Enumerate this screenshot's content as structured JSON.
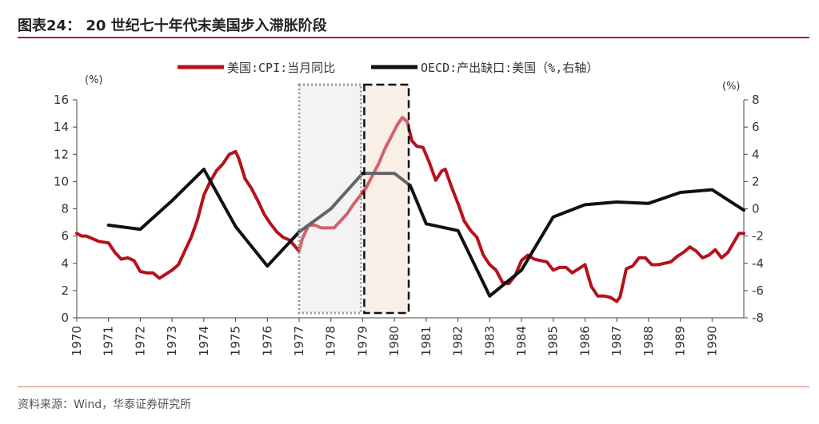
{
  "header": {
    "title": "图表24：   20 世纪七十年代末美国步入滞胀阶段"
  },
  "footer": {
    "source": "资料来源：Wind，华泰证券研究所"
  },
  "chart_data": {
    "type": "line",
    "title": "",
    "xlabel": "",
    "ylabel": "",
    "left_unit": "(%)",
    "right_unit": "(%)",
    "legend_position": "top-center",
    "grid": false,
    "colors": {
      "cpi": "#b5121b",
      "gap": "#111111",
      "shade_gray": "#ededed",
      "shade_orange": "#f6e6da",
      "box_gray": "#9a9a9a",
      "box_black": "#111111"
    },
    "x_ticks": [
      "1970",
      "1971",
      "1972",
      "1973",
      "1974",
      "1975",
      "1976",
      "1977",
      "1978",
      "1979",
      "1980",
      "1981",
      "1982",
      "1983",
      "1984",
      "1985",
      "1986",
      "1987",
      "1988",
      "1989",
      "1990"
    ],
    "xlim": [
      1970,
      1991
    ],
    "left_axis": {
      "ylim": [
        0,
        16
      ],
      "ticks": [
        "0",
        "2",
        "4",
        "6",
        "8",
        "10",
        "12",
        "14",
        "16"
      ]
    },
    "right_axis": {
      "ylim": [
        -8,
        8
      ],
      "ticks": [
        "-8",
        "-6",
        "-4",
        "-2",
        "0",
        "2",
        "4",
        "6",
        "8"
      ]
    },
    "shaded_periods": [
      {
        "start": 1977.0,
        "end": 1978.95,
        "style": "gray-dotted"
      },
      {
        "start": 1979.05,
        "end": 1980.45,
        "style": "orange-dashed"
      }
    ],
    "series": [
      {
        "name": "美国:CPI:当月同比",
        "axis": "left",
        "points": [
          [
            1970.0,
            6.2
          ],
          [
            1970.15,
            6.0
          ],
          [
            1970.3,
            6.0
          ],
          [
            1970.5,
            5.8
          ],
          [
            1970.7,
            5.6
          ],
          [
            1971.0,
            5.5
          ],
          [
            1971.2,
            4.8
          ],
          [
            1971.4,
            4.3
          ],
          [
            1971.6,
            4.4
          ],
          [
            1971.8,
            4.2
          ],
          [
            1972.0,
            3.4
          ],
          [
            1972.2,
            3.3
          ],
          [
            1972.4,
            3.3
          ],
          [
            1972.6,
            2.9
          ],
          [
            1972.8,
            3.2
          ],
          [
            1973.0,
            3.5
          ],
          [
            1973.2,
            3.9
          ],
          [
            1973.4,
            4.9
          ],
          [
            1973.6,
            5.9
          ],
          [
            1973.8,
            7.2
          ],
          [
            1974.0,
            9.0
          ],
          [
            1974.2,
            10.0
          ],
          [
            1974.4,
            10.8
          ],
          [
            1974.6,
            11.3
          ],
          [
            1974.8,
            12.0
          ],
          [
            1975.0,
            12.2
          ],
          [
            1975.1,
            11.7
          ],
          [
            1975.3,
            10.2
          ],
          [
            1975.5,
            9.5
          ],
          [
            1975.7,
            8.6
          ],
          [
            1975.9,
            7.6
          ],
          [
            1976.1,
            6.9
          ],
          [
            1976.3,
            6.3
          ],
          [
            1976.5,
            5.9
          ],
          [
            1976.7,
            5.7
          ],
          [
            1976.85,
            5.3
          ],
          [
            1977.0,
            4.9
          ],
          [
            1977.1,
            5.8
          ],
          [
            1977.3,
            6.8
          ],
          [
            1977.5,
            6.8
          ],
          [
            1977.7,
            6.6
          ],
          [
            1977.9,
            6.6
          ],
          [
            1978.1,
            6.6
          ],
          [
            1978.3,
            7.1
          ],
          [
            1978.5,
            7.6
          ],
          [
            1978.7,
            8.3
          ],
          [
            1978.9,
            8.9
          ],
          [
            1979.1,
            9.5
          ],
          [
            1979.3,
            10.4
          ],
          [
            1979.5,
            11.3
          ],
          [
            1979.7,
            12.4
          ],
          [
            1979.9,
            13.3
          ],
          [
            1980.1,
            14.2
          ],
          [
            1980.25,
            14.7
          ],
          [
            1980.4,
            14.4
          ],
          [
            1980.55,
            13.0
          ],
          [
            1980.7,
            12.6
          ],
          [
            1980.9,
            12.5
          ],
          [
            1981.1,
            11.4
          ],
          [
            1981.3,
            10.1
          ],
          [
            1981.5,
            10.8
          ],
          [
            1981.6,
            10.9
          ],
          [
            1981.8,
            9.6
          ],
          [
            1982.0,
            8.4
          ],
          [
            1982.2,
            7.1
          ],
          [
            1982.4,
            6.4
          ],
          [
            1982.6,
            5.9
          ],
          [
            1982.8,
            4.6
          ],
          [
            1983.0,
            3.9
          ],
          [
            1983.2,
            3.5
          ],
          [
            1983.4,
            2.6
          ],
          [
            1983.6,
            2.5
          ],
          [
            1983.8,
            3.1
          ],
          [
            1984.0,
            4.2
          ],
          [
            1984.2,
            4.6
          ],
          [
            1984.4,
            4.3
          ],
          [
            1984.6,
            4.2
          ],
          [
            1984.8,
            4.1
          ],
          [
            1985.0,
            3.5
          ],
          [
            1985.2,
            3.7
          ],
          [
            1985.4,
            3.7
          ],
          [
            1985.6,
            3.3
          ],
          [
            1985.8,
            3.6
          ],
          [
            1986.0,
            3.9
          ],
          [
            1986.2,
            2.3
          ],
          [
            1986.4,
            1.6
          ],
          [
            1986.6,
            1.6
          ],
          [
            1986.8,
            1.5
          ],
          [
            1987.0,
            1.2
          ],
          [
            1987.1,
            1.5
          ],
          [
            1987.3,
            3.6
          ],
          [
            1987.5,
            3.8
          ],
          [
            1987.7,
            4.4
          ],
          [
            1987.9,
            4.4
          ],
          [
            1988.1,
            3.9
          ],
          [
            1988.3,
            3.9
          ],
          [
            1988.5,
            4.0
          ],
          [
            1988.7,
            4.1
          ],
          [
            1988.9,
            4.5
          ],
          [
            1989.1,
            4.8
          ],
          [
            1989.3,
            5.2
          ],
          [
            1989.5,
            4.9
          ],
          [
            1989.7,
            4.4
          ],
          [
            1989.9,
            4.6
          ],
          [
            1990.1,
            5.0
          ],
          [
            1990.3,
            4.4
          ],
          [
            1990.5,
            4.8
          ],
          [
            1990.7,
            5.6
          ],
          [
            1990.85,
            6.2
          ],
          [
            1991.0,
            6.2
          ]
        ]
      },
      {
        "name": "OECD:产出缺口:美国（%,右轴）",
        "axis": "right",
        "points": [
          [
            1971.0,
            -1.2
          ],
          [
            1972.0,
            -1.5
          ],
          [
            1973.0,
            0.6
          ],
          [
            1974.0,
            2.9
          ],
          [
            1975.0,
            -1.3
          ],
          [
            1976.0,
            -4.2
          ],
          [
            1977.0,
            -1.7
          ],
          [
            1978.0,
            0.0
          ],
          [
            1979.0,
            2.6
          ],
          [
            1980.0,
            2.6
          ],
          [
            1980.5,
            1.7
          ],
          [
            1981.0,
            -1.1
          ],
          [
            1982.0,
            -1.6
          ],
          [
            1983.0,
            -6.4
          ],
          [
            1984.0,
            -4.5
          ],
          [
            1985.0,
            -0.6
          ],
          [
            1986.0,
            0.3
          ],
          [
            1987.0,
            0.5
          ],
          [
            1988.0,
            0.4
          ],
          [
            1989.0,
            1.2
          ],
          [
            1990.0,
            1.4
          ],
          [
            1991.0,
            -0.1
          ]
        ]
      }
    ]
  }
}
